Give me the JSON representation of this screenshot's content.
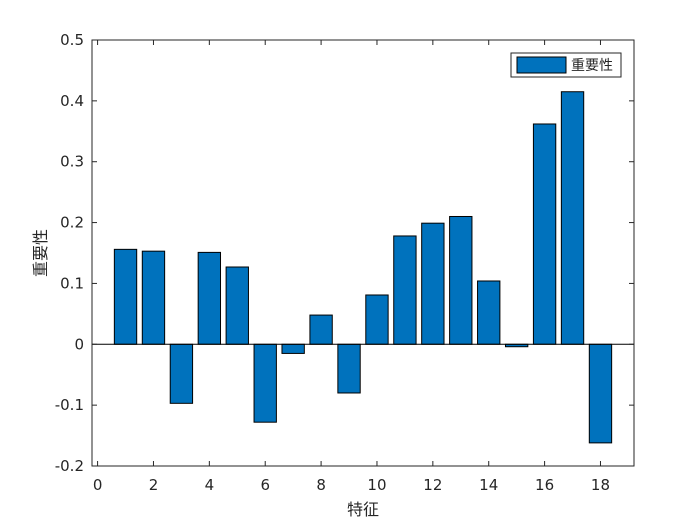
{
  "chart_data": {
    "type": "bar",
    "title": "",
    "xlabel": "特征",
    "ylabel": "重要性",
    "x": [
      1,
      2,
      3,
      4,
      5,
      6,
      7,
      8,
      9,
      10,
      11,
      12,
      13,
      14,
      15,
      16,
      17,
      18
    ],
    "series": [
      {
        "name": "重要性",
        "values": [
          0.156,
          0.153,
          -0.097,
          0.151,
          0.127,
          -0.128,
          -0.015,
          0.048,
          -0.08,
          0.081,
          0.178,
          0.199,
          0.21,
          0.104,
          -0.004,
          0.362,
          0.415,
          -0.162
        ]
      }
    ],
    "xlim": [
      -0.2,
      19.2
    ],
    "ylim": [
      -0.2,
      0.5
    ],
    "xticks": [
      0,
      2,
      4,
      6,
      8,
      10,
      12,
      14,
      16,
      18
    ],
    "xtick_labels": [
      "0",
      "2",
      "4",
      "6",
      "8",
      "10",
      "12",
      "14",
      "16",
      "18"
    ],
    "yticks": [
      -0.2,
      -0.1,
      0,
      0.1,
      0.2,
      0.3,
      0.4,
      0.5
    ],
    "ytick_labels": [
      "-0.2",
      "-0.1",
      "0",
      "0.1",
      "0.2",
      "0.3",
      "0.4",
      "0.5"
    ],
    "bar_color": "#0072BD",
    "grid": false,
    "legend_position": "top-right",
    "baseline": 0
  }
}
